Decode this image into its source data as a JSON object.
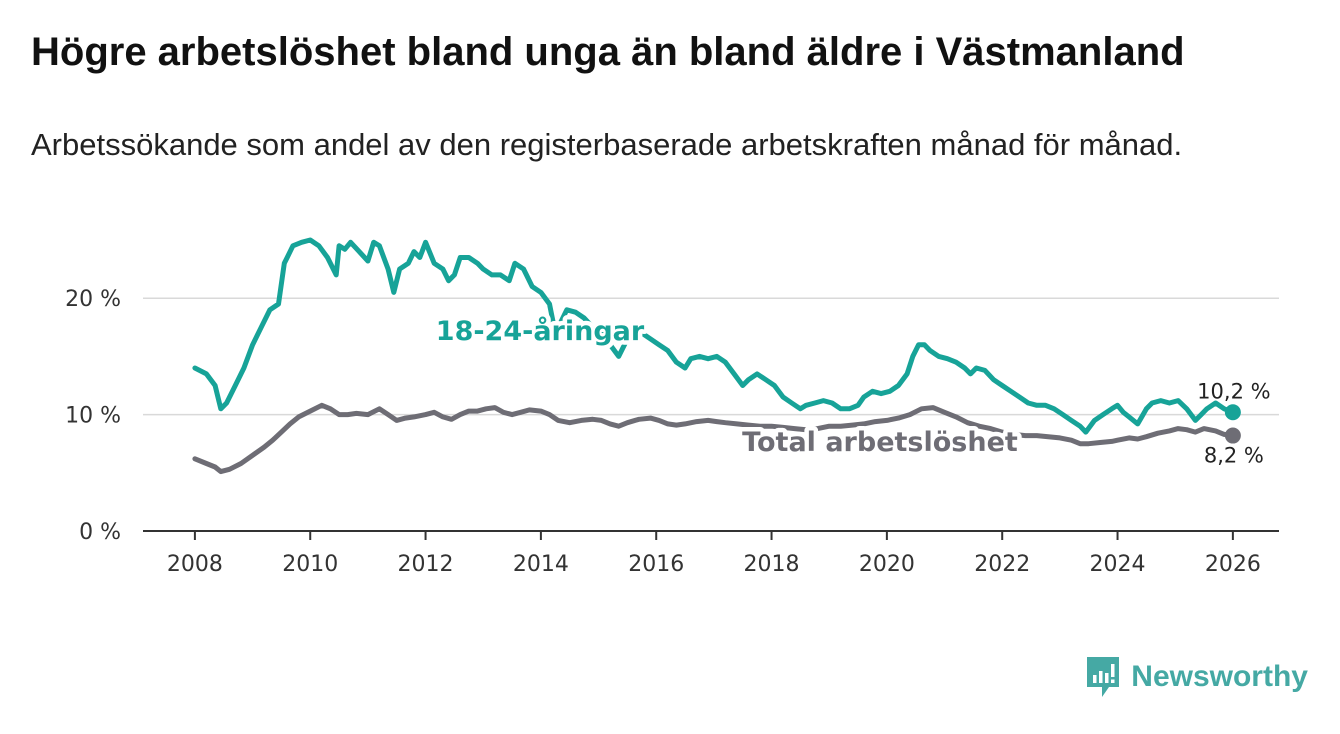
{
  "title": "Högre arbetslöshet bland unga än bland äldre i Västmanland",
  "subtitle": "Arbetssökande som andel av den registerbaserade arbetskraften månad för månad.",
  "brand": {
    "name": "Newsworthy",
    "icon": "newsworthy-logo-icon",
    "color": "#45a9a4"
  },
  "chart_data": {
    "type": "line",
    "title": "Högre arbetslöshet bland unga än bland äldre i Västmanland",
    "xlabel": "",
    "ylabel": "",
    "xlim": [
      2007.1,
      2026.8
    ],
    "ylim": [
      0,
      25
    ],
    "grid": true,
    "x_ticks": [
      2008,
      2010,
      2012,
      2014,
      2016,
      2018,
      2020,
      2022,
      2024,
      2026
    ],
    "x_tick_labels": [
      "2008",
      "2010",
      "2012",
      "2014",
      "2016",
      "2018",
      "2020",
      "2022",
      "2024",
      "2026"
    ],
    "y_ticks": [
      0,
      10,
      20
    ],
    "y_tick_labels": [
      "0 %",
      "10 %",
      "20 %"
    ],
    "series": [
      {
        "name": "18-24-åringar",
        "label": "18-24-åringar",
        "color": "#17a398",
        "end_label": "10,2 %",
        "x": [
          2008.0,
          2008.2,
          2008.35,
          2008.45,
          2008.55,
          2008.7,
          2008.85,
          2009.0,
          2009.15,
          2009.3,
          2009.45,
          2009.55,
          2009.6,
          2009.7,
          2009.85,
          2010.0,
          2010.15,
          2010.3,
          2010.45,
          2010.5,
          2010.6,
          2010.7,
          2010.85,
          2011.0,
          2011.1,
          2011.2,
          2011.35,
          2011.45,
          2011.55,
          2011.7,
          2011.8,
          2011.9,
          2012.0,
          2012.15,
          2012.3,
          2012.4,
          2012.5,
          2012.6,
          2012.75,
          2012.9,
          2013.0,
          2013.15,
          2013.3,
          2013.45,
          2013.55,
          2013.7,
          2013.85,
          2014.0,
          2014.15,
          2014.25,
          2014.35,
          2014.45,
          2014.6,
          2014.75,
          2014.9,
          2015.05,
          2015.2,
          2015.35,
          2015.5,
          2015.6,
          2015.75,
          2015.9,
          2016.05,
          2016.2,
          2016.35,
          2016.5,
          2016.6,
          2016.75,
          2016.9,
          2017.05,
          2017.2,
          2017.35,
          2017.5,
          2017.6,
          2017.75,
          2017.9,
          2018.05,
          2018.2,
          2018.35,
          2018.5,
          2018.6,
          2018.75,
          2018.9,
          2019.05,
          2019.2,
          2019.35,
          2019.5,
          2019.6,
          2019.75,
          2019.9,
          2020.05,
          2020.2,
          2020.35,
          2020.45,
          2020.55,
          2020.65,
          2020.75,
          2020.9,
          2021.05,
          2021.2,
          2021.35,
          2021.45,
          2021.55,
          2021.7,
          2021.85,
          2022.0,
          2022.15,
          2022.3,
          2022.45,
          2022.6,
          2022.75,
          2022.9,
          2023.05,
          2023.2,
          2023.35,
          2023.45,
          2023.6,
          2023.75,
          2023.9,
          2024.0,
          2024.1,
          2024.2,
          2024.35,
          2024.5,
          2024.6,
          2024.75,
          2024.9,
          2025.05,
          2025.2,
          2025.35,
          2025.45,
          2025.55,
          2025.7,
          2025.85,
          2026.0
        ],
        "values": [
          14.0,
          13.5,
          12.5,
          10.5,
          11.0,
          12.5,
          14.0,
          16.0,
          17.5,
          19.0,
          19.5,
          23.0,
          23.5,
          24.5,
          24.8,
          25.0,
          24.5,
          23.5,
          22.0,
          24.5,
          24.2,
          24.8,
          24.0,
          23.2,
          24.8,
          24.5,
          22.5,
          20.5,
          22.5,
          23.0,
          24.0,
          23.5,
          24.8,
          23.0,
          22.5,
          21.5,
          22.0,
          23.5,
          23.5,
          23.0,
          22.5,
          22.0,
          22.0,
          21.5,
          23.0,
          22.5,
          21.0,
          20.5,
          19.5,
          17.0,
          18.0,
          19.0,
          18.8,
          18.3,
          17.5,
          17.0,
          16.0,
          15.0,
          16.5,
          16.5,
          17.0,
          16.5,
          16.0,
          15.5,
          14.5,
          14.0,
          14.8,
          15.0,
          14.8,
          15.0,
          14.5,
          13.5,
          12.5,
          13.0,
          13.5,
          13.0,
          12.5,
          11.5,
          11.0,
          10.5,
          10.8,
          11.0,
          11.2,
          11.0,
          10.5,
          10.5,
          10.8,
          11.5,
          12.0,
          11.8,
          12.0,
          12.5,
          13.5,
          15.0,
          16.0,
          16.0,
          15.5,
          15.0,
          14.8,
          14.5,
          14.0,
          13.5,
          14.0,
          13.8,
          13.0,
          12.5,
          12.0,
          11.5,
          11.0,
          10.8,
          10.8,
          10.5,
          10.0,
          9.5,
          9.0,
          8.5,
          9.5,
          10.0,
          10.5,
          10.8,
          10.2,
          9.8,
          9.2,
          10.5,
          11.0,
          11.2,
          11.0,
          11.2,
          10.5,
          9.5,
          10.0,
          10.5,
          11.0,
          10.5,
          10.2
        ]
      },
      {
        "name": "Total arbetslöshet",
        "label": "Total arbetslöshet",
        "color": "#6e6d75",
        "end_label": "8,2 %",
        "x": [
          2008.0,
          2008.2,
          2008.35,
          2008.45,
          2008.6,
          2008.8,
          2009.0,
          2009.2,
          2009.35,
          2009.5,
          2009.65,
          2009.8,
          2010.0,
          2010.2,
          2010.35,
          2010.5,
          2010.65,
          2010.8,
          2011.0,
          2011.2,
          2011.35,
          2011.5,
          2011.65,
          2011.8,
          2012.0,
          2012.15,
          2012.3,
          2012.45,
          2012.6,
          2012.75,
          2012.9,
          2013.05,
          2013.2,
          2013.35,
          2013.5,
          2013.65,
          2013.8,
          2014.0,
          2014.15,
          2014.3,
          2014.5,
          2014.7,
          2014.9,
          2015.05,
          2015.2,
          2015.35,
          2015.5,
          2015.7,
          2015.9,
          2016.05,
          2016.2,
          2016.35,
          2016.5,
          2016.7,
          2016.9,
          2017.05,
          2017.2,
          2017.4,
          2017.6,
          2017.8,
          2018.0,
          2018.2,
          2018.4,
          2018.6,
          2018.8,
          2019.0,
          2019.2,
          2019.4,
          2019.6,
          2019.8,
          2020.0,
          2020.2,
          2020.4,
          2020.6,
          2020.8,
          2021.0,
          2021.2,
          2021.4,
          2021.6,
          2021.8,
          2022.0,
          2022.2,
          2022.4,
          2022.6,
          2022.8,
          2023.0,
          2023.2,
          2023.35,
          2023.5,
          2023.7,
          2023.9,
          2024.0,
          2024.2,
          2024.35,
          2024.5,
          2024.7,
          2024.9,
          2025.05,
          2025.2,
          2025.35,
          2025.5,
          2025.7,
          2025.85,
          2026.0
        ],
        "values": [
          6.2,
          5.8,
          5.5,
          5.1,
          5.3,
          5.8,
          6.5,
          7.2,
          7.8,
          8.5,
          9.2,
          9.8,
          10.3,
          10.8,
          10.5,
          10.0,
          10.0,
          10.1,
          10.0,
          10.5,
          10.0,
          9.5,
          9.7,
          9.8,
          10.0,
          10.2,
          9.8,
          9.6,
          10.0,
          10.3,
          10.3,
          10.5,
          10.6,
          10.2,
          10.0,
          10.2,
          10.4,
          10.3,
          10.0,
          9.5,
          9.3,
          9.5,
          9.6,
          9.5,
          9.2,
          9.0,
          9.3,
          9.6,
          9.7,
          9.5,
          9.2,
          9.1,
          9.2,
          9.4,
          9.5,
          9.4,
          9.3,
          9.2,
          9.1,
          9.0,
          9.0,
          8.9,
          8.8,
          8.7,
          8.8,
          9.0,
          9.0,
          9.1,
          9.2,
          9.4,
          9.5,
          9.7,
          10.0,
          10.5,
          10.6,
          10.2,
          9.8,
          9.3,
          9.0,
          8.8,
          8.5,
          8.3,
          8.2,
          8.2,
          8.1,
          8.0,
          7.8,
          7.5,
          7.5,
          7.6,
          7.7,
          7.8,
          8.0,
          7.9,
          8.1,
          8.4,
          8.6,
          8.8,
          8.7,
          8.5,
          8.8,
          8.6,
          8.3,
          8.2
        ]
      }
    ]
  }
}
